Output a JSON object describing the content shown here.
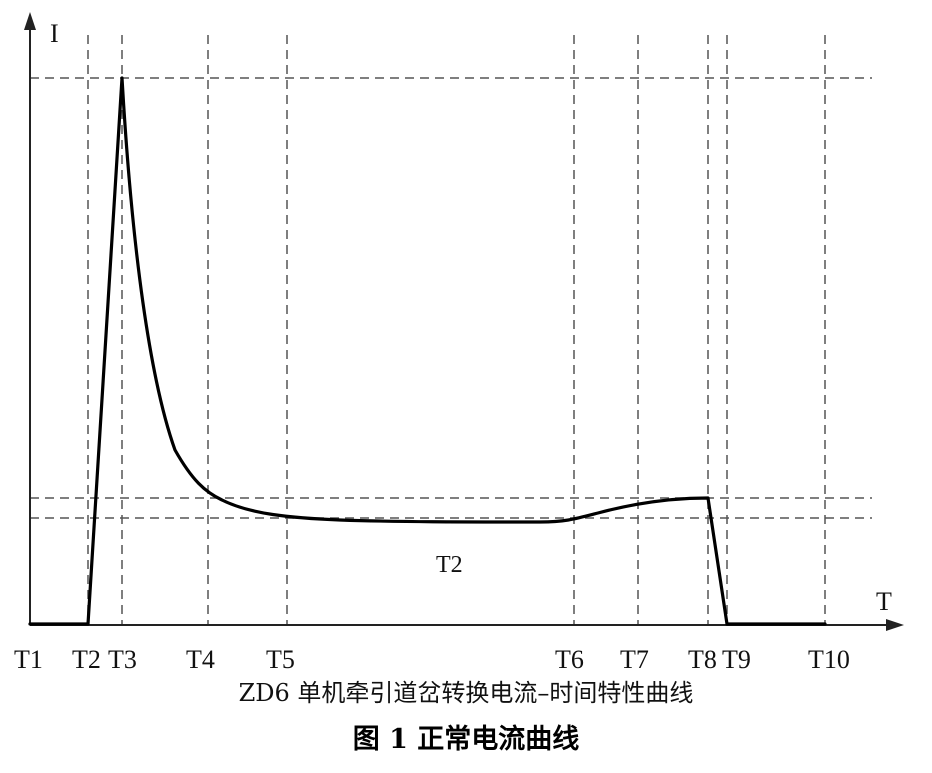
{
  "chart_data": {
    "type": "line",
    "title": "图 1  正常电流曲线",
    "subtitle": "ZD6 单机牵引道岔转换电流–时间特性曲线",
    "xlabel": "T",
    "ylabel": "I",
    "grid": "dashed",
    "x_ticks": [
      "T1",
      "T2",
      "T3",
      "T4",
      "T5",
      "T6",
      "T7",
      "T8",
      "T9",
      "T10"
    ],
    "series": [
      {
        "x": [
          "T1",
          "T2",
          "T3",
          "T4",
          "T5",
          "T6",
          "T7",
          "T8",
          "T9",
          "T10"
        ],
        "values": [
          0,
          0,
          1.0,
          0.24,
          0.19,
          0.19,
          0.22,
          0.23,
          0,
          0
        ]
      }
    ],
    "annotations": [
      {
        "text": "T2",
        "x_between": [
          "T5",
          "T6"
        ]
      }
    ],
    "colors": {
      "curve": "#000000",
      "grid": "#555555",
      "axis": "#222222"
    }
  }
}
